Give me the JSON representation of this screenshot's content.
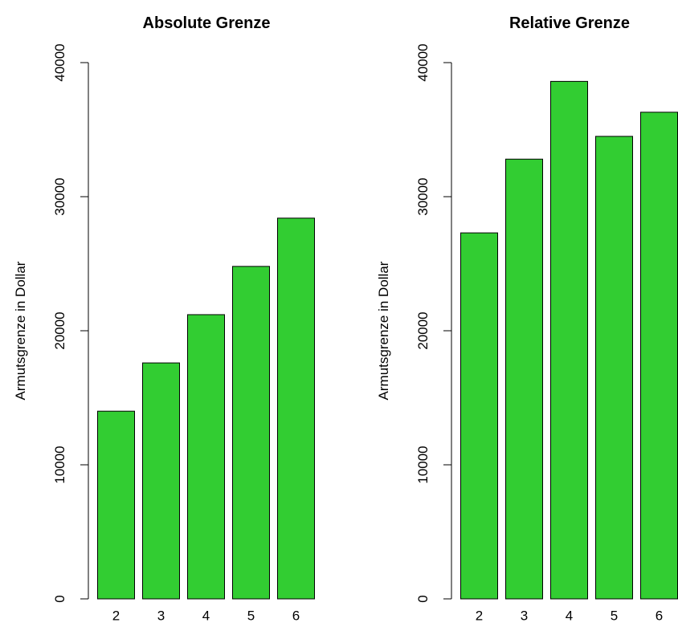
{
  "chart_data": [
    {
      "type": "bar",
      "title": "Absolute Grenze",
      "xlabel": "",
      "ylabel": "Armutsgrenze in Dollar",
      "categories": [
        "2",
        "3",
        "4",
        "5",
        "6"
      ],
      "values": [
        14000,
        17600,
        21200,
        24800,
        28400
      ],
      "ylim": [
        0,
        40000
      ],
      "yticks": [
        "0",
        "10000",
        "20000",
        "30000",
        "40000"
      ],
      "bar_color": "#32CD32",
      "grid": false
    },
    {
      "type": "bar",
      "title": "Relative Grenze",
      "xlabel": "",
      "ylabel": "Armutsgrenze in Dollar",
      "categories": [
        "2",
        "3",
        "4",
        "5",
        "6"
      ],
      "values": [
        27300,
        32800,
        38600,
        34500,
        36300
      ],
      "ylim": [
        0,
        40000
      ],
      "yticks": [
        "0",
        "10000",
        "20000",
        "30000",
        "40000"
      ],
      "bar_color": "#32CD32",
      "grid": false
    }
  ]
}
